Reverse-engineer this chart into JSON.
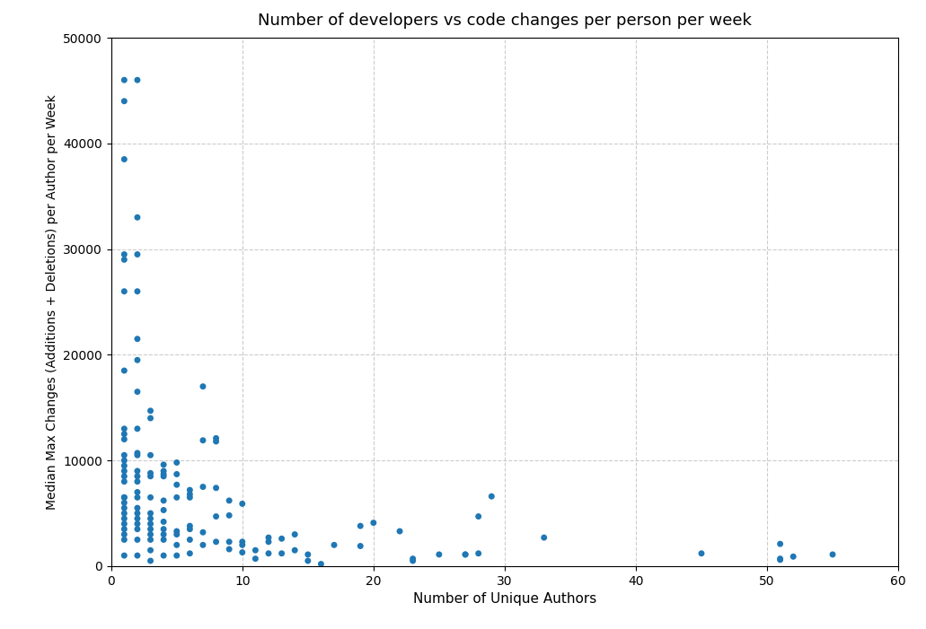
{
  "title": "Number of developers vs code changes per person per week",
  "xlabel": "Number of Unique Authors",
  "ylabel": "Median Max Changes (Additions + Deletions) per Author per Week",
  "xlim": [
    0,
    60
  ],
  "ylim": [
    0,
    50000
  ],
  "xticks": [
    0,
    10,
    20,
    30,
    40,
    50,
    60
  ],
  "yticks": [
    0,
    10000,
    20000,
    30000,
    40000,
    50000
  ],
  "dot_color": "#1f77b4",
  "dot_size": 25,
  "x": [
    1,
    1,
    1,
    1,
    1,
    1,
    1,
    1,
    1,
    1,
    1,
    1,
    1,
    1,
    1,
    1,
    1,
    1,
    1,
    1,
    1,
    1,
    1,
    1,
    1,
    1,
    1,
    2,
    2,
    2,
    2,
    2,
    2,
    2,
    2,
    2,
    2,
    2,
    2,
    2,
    2,
    2,
    2,
    2,
    2,
    2,
    2,
    2,
    2,
    3,
    3,
    3,
    3,
    3,
    3,
    3,
    3,
    3,
    3,
    3,
    3,
    3,
    3,
    4,
    4,
    4,
    4,
    4,
    4,
    4,
    4,
    4,
    4,
    4,
    5,
    5,
    5,
    5,
    5,
    5,
    5,
    5,
    6,
    6,
    6,
    6,
    6,
    6,
    6,
    7,
    7,
    7,
    7,
    7,
    8,
    8,
    8,
    8,
    8,
    9,
    9,
    9,
    9,
    10,
    10,
    10,
    10,
    11,
    11,
    12,
    12,
    12,
    13,
    13,
    14,
    14,
    15,
    15,
    16,
    17,
    19,
    19,
    20,
    22,
    23,
    23,
    25,
    27,
    27,
    28,
    28,
    29,
    33,
    45,
    51,
    51,
    51,
    52,
    55
  ],
  "y": [
    46000,
    44000,
    38500,
    29000,
    29500,
    26000,
    18500,
    13000,
    12500,
    12000,
    10500,
    10000,
    9500,
    9000,
    8500,
    8000,
    6500,
    6500,
    6000,
    5500,
    5000,
    4500,
    4000,
    3500,
    3000,
    2500,
    1000,
    46000,
    33000,
    29500,
    26000,
    21500,
    19500,
    16500,
    13000,
    10700,
    10500,
    9000,
    8500,
    8000,
    7000,
    6500,
    5500,
    5000,
    4500,
    4000,
    3500,
    2500,
    1000,
    14700,
    14000,
    10500,
    8800,
    8500,
    6500,
    5000,
    4500,
    4000,
    3500,
    3000,
    2500,
    1500,
    500,
    9600,
    9000,
    8700,
    8500,
    6200,
    5300,
    4200,
    3500,
    3000,
    2500,
    1000,
    9800,
    8700,
    7700,
    6500,
    3300,
    3000,
    2000,
    1000,
    7200,
    6800,
    6500,
    3800,
    3500,
    2500,
    1200,
    17000,
    11900,
    7500,
    3200,
    2000,
    12100,
    11800,
    7400,
    4700,
    2300,
    6200,
    4800,
    2300,
    1600,
    5900,
    2300,
    2000,
    1300,
    1500,
    700,
    2700,
    2300,
    1200,
    2600,
    1200,
    3000,
    1500,
    1100,
    500,
    200,
    2000,
    3800,
    1900,
    4100,
    3300,
    700,
    500,
    1100,
    1100,
    1100,
    4700,
    1200,
    6600,
    2700,
    1200,
    2100,
    700,
    600,
    900,
    1100
  ]
}
